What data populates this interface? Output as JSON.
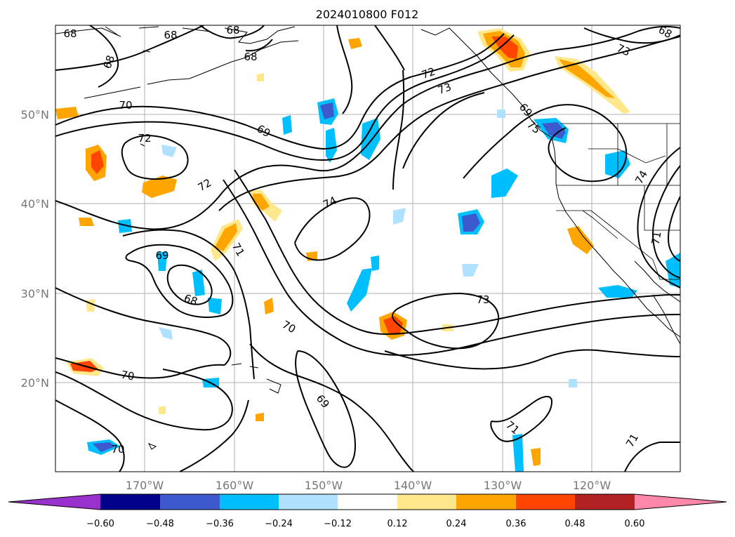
{
  "title": "2024010800 F012",
  "lat_labels": [
    "50°N",
    "40°N",
    "30°N",
    "20°N"
  ],
  "lon_labels": [
    "170°W",
    "160°W",
    "150°W",
    "140°W",
    "130°W",
    "120°W"
  ],
  "contour_labels": [
    "68",
    "68",
    "68",
    "68",
    "68",
    "68",
    "70",
    "72",
    "73",
    "73",
    "72",
    "72",
    "69",
    "71",
    "69",
    "69",
    "74",
    "74",
    "71",
    "70",
    "73",
    "70",
    "69",
    "68",
    "71",
    "70",
    "71",
    "75"
  ],
  "colorbar": {
    "ticks": [
      "−0.60",
      "−0.48",
      "−0.36",
      "−0.24",
      "−0.12",
      "0.12",
      "0.24",
      "0.36",
      "0.48",
      "0.60"
    ],
    "colors": [
      "#9932CC",
      "#00008B",
      "#3C5ACD",
      "#00BFFF",
      "#B0E2FF",
      "#FFFFFF",
      "#FFE88C",
      "#FFA500",
      "#FF4500",
      "#B22222",
      "#FF88AA"
    ]
  }
}
